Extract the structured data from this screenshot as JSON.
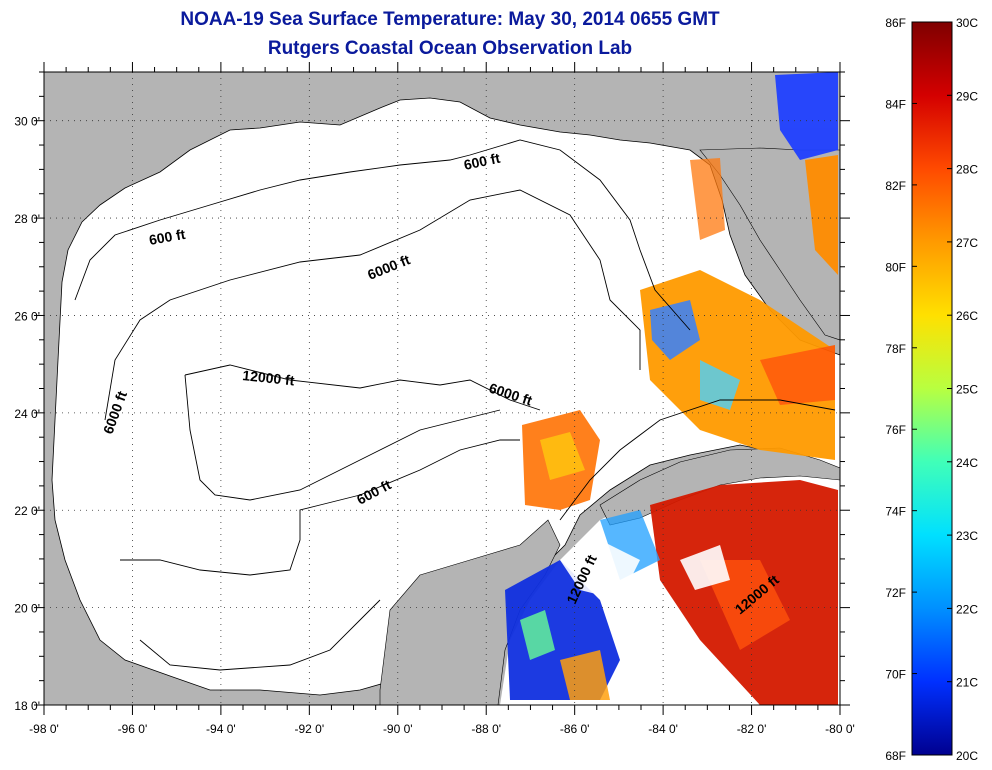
{
  "title": "NOAA-19 Sea Surface Temperature:  May 30, 2014 0655 GMT",
  "subtitle": "Rutgers Coastal Ocean Observation Lab",
  "map": {
    "lon_ticks": [
      -98,
      -96,
      -94,
      -92,
      -90,
      -88,
      -86,
      -84,
      -82,
      -80
    ],
    "lat_ticks": [
      18,
      20,
      22,
      24,
      26,
      28,
      30
    ],
    "lon_labels": [
      "-98 0'",
      "-96 0'",
      "-94 0'",
      "-92 0'",
      "-90 0'",
      "-88 0'",
      "-86 0'",
      "-84 0'",
      "-82 0'",
      "-80 0'"
    ],
    "lat_labels": [
      "18 0'",
      "20 0'",
      "22 0'",
      "24 0'",
      "26 0'",
      "28 0'",
      "30 0'"
    ],
    "lon_range": [
      -98,
      -80
    ],
    "lat_range": [
      18,
      31
    ],
    "grid": "dotted",
    "land_color": "#b4b4b4",
    "water_no_data_color": "#ffffff",
    "contour_labels": [
      "600 ft",
      "600 ft",
      "600 ft",
      "6000 ft",
      "6000 ft",
      "6000 ft",
      "12000 ft",
      "12000 ft",
      "12000 ft"
    ]
  },
  "colorbar": {
    "fahrenheit_labels": [
      "86F",
      "84F",
      "82F",
      "80F",
      "78F",
      "76F",
      "74F",
      "72F",
      "70F",
      "68F"
    ],
    "celsius_labels": [
      "30C",
      "29C",
      "28C",
      "27C",
      "26C",
      "25C",
      "24C",
      "23C",
      "22C",
      "21C",
      "20C"
    ],
    "range_c": [
      20,
      30
    ],
    "range_f": [
      68,
      86
    ],
    "colors_top_to_bottom": [
      "#7f0000",
      "#d40000",
      "#ff4a00",
      "#ff9a00",
      "#ffe000",
      "#b8ff40",
      "#40ffb8",
      "#00e0ff",
      "#0090ff",
      "#0030ff",
      "#00008f"
    ]
  },
  "colors": {
    "title": "#0a1a9c"
  }
}
